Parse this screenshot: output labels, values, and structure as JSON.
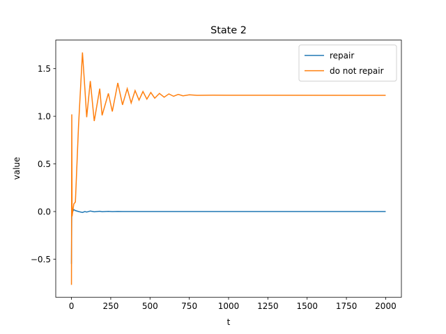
{
  "chart_data": {
    "type": "line",
    "title": "State 2",
    "x_label": "t",
    "y_label": "value",
    "x": [
      0,
      2,
      4,
      8,
      15,
      25,
      45,
      70,
      85,
      97,
      120,
      145,
      180,
      195,
      235,
      260,
      295,
      325,
      355,
      380,
      405,
      430,
      455,
      480,
      505,
      530,
      560,
      590,
      620,
      650,
      680,
      710,
      750,
      800,
      900,
      1000,
      2000
    ],
    "series": [
      {
        "name": "repair",
        "color": "#1f77b4",
        "values": [
          -0.55,
          0.02,
          0.0,
          0.0,
          0.02,
          0.01,
          0.0,
          -0.01,
          0.0,
          -0.005,
          0.005,
          -0.003,
          0.003,
          -0.002,
          0.002,
          -0.001,
          0.001,
          0.0,
          0.0,
          0.0,
          0.0,
          0.0,
          0.0,
          0.0,
          0.0,
          0.0,
          0.0,
          0.0,
          0.0,
          0.0,
          0.0,
          0.0,
          0.0,
          0.0,
          0.0,
          0.0,
          0.0
        ]
      },
      {
        "name": "do not repair",
        "color": "#ff7f0e",
        "values": [
          -0.77,
          1.02,
          -0.05,
          0.0,
          0.08,
          0.1,
          0.9,
          1.67,
          1.3,
          0.99,
          1.37,
          0.95,
          1.29,
          1.01,
          1.24,
          1.05,
          1.35,
          1.12,
          1.29,
          1.14,
          1.27,
          1.17,
          1.26,
          1.18,
          1.25,
          1.19,
          1.24,
          1.2,
          1.235,
          1.21,
          1.23,
          1.215,
          1.225,
          1.22,
          1.222,
          1.221,
          1.22
        ]
      }
    ],
    "xlim": [
      -100,
      2100
    ],
    "ylim": [
      -0.9,
      1.8
    ],
    "xticks": [
      0,
      250,
      500,
      750,
      1000,
      1250,
      1500,
      1750,
      2000
    ],
    "yticks": [
      {
        "value": -0.5,
        "label": "−0.5"
      },
      {
        "value": 0,
        "label": "0.0"
      },
      {
        "value": 0.5,
        "label": "0.5"
      },
      {
        "value": 1,
        "label": "1.0"
      },
      {
        "value": 1.5,
        "label": "1.5"
      }
    ],
    "legend": "upper right",
    "grid": false
  }
}
